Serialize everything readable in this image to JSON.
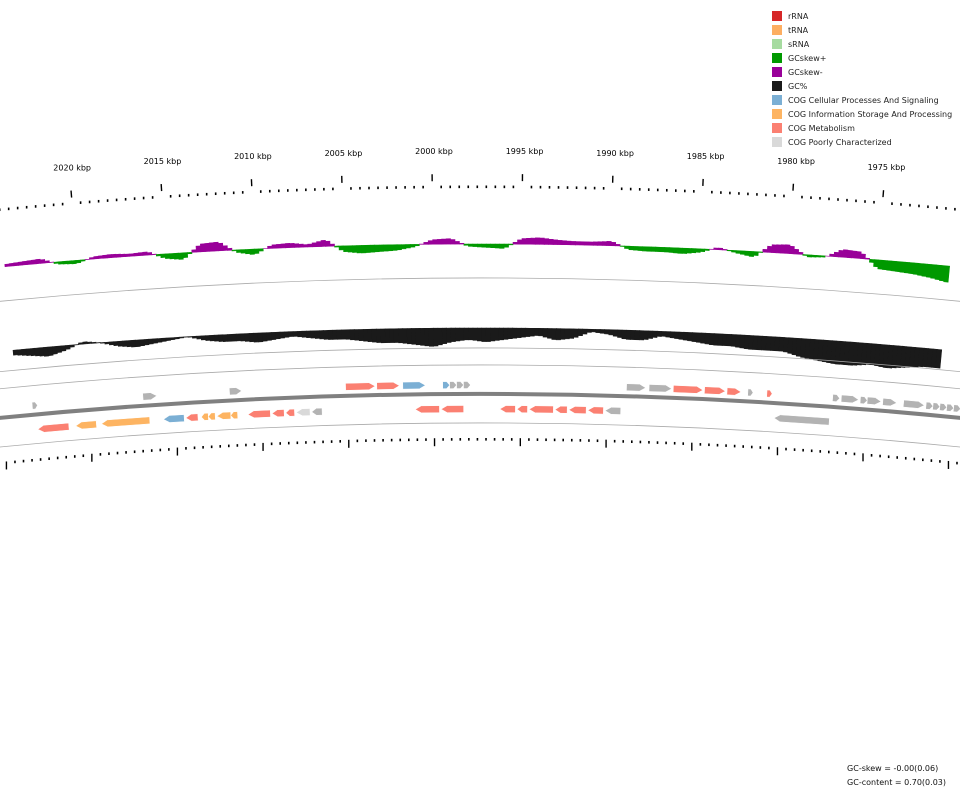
{
  "legend": [
    {
      "label": "rRNA",
      "color": "#d62728"
    },
    {
      "label": "tRNA",
      "color": "#fdae61"
    },
    {
      "label": "sRNA",
      "color": "#a6dba0"
    },
    {
      "label": "GCskew+",
      "color": "#009900"
    },
    {
      "label": "GCskew-",
      "color": "#990099"
    },
    {
      "label": "GC%",
      "color": "#1a1a1a"
    },
    {
      "label": "COG Cellular Processes And Signaling",
      "color": "#7bafd4"
    },
    {
      "label": "COG Information Storage And Processing",
      "color": "#fdb462"
    },
    {
      "label": "COG Metabolism",
      "color": "#fb8072"
    },
    {
      "label": "COG Poorly Characterized",
      "color": "#d9d9d9"
    }
  ],
  "stats": {
    "gc_skew": "GC-skew = -0.00(0.06)",
    "gc_content": "GC-content = 0.70(0.03)"
  },
  "axis": {
    "unit": "kbp",
    "labels": [
      "2020 kbp",
      "2015 kbp",
      "2010 kbp",
      "2005 kbp",
      "2000 kbp",
      "1995 kbp",
      "1990 kbp",
      "1985 kbp",
      "1980 kbp",
      "1975 kbp"
    ],
    "range_kbp": [
      2023,
      1972
    ]
  },
  "colors": {
    "skew_pos": "#009900",
    "skew_neg": "#990099",
    "gc": "#1a1a1a",
    "backbone": "#808080",
    "ring_line": "#aaaaaa",
    "gene_other": "#b3b3b3",
    "cog_cellular": "#7bafd4",
    "cog_info": "#fdb462",
    "cog_metabolism": "#fb8072",
    "cog_poor": "#d9d9d9"
  },
  "genes": [
    {
      "strand": "+",
      "start": 2023.2,
      "end": 2022.9,
      "cls": "gene_other"
    },
    {
      "strand": "+",
      "start": 2016.8,
      "end": 2016.0,
      "cls": "gene_other"
    },
    {
      "strand": "+",
      "start": 2011.8,
      "end": 2011.1,
      "cls": "gene_other"
    },
    {
      "strand": "+",
      "start": 2005.1,
      "end": 2003.4,
      "cls": "cog_metabolism"
    },
    {
      "strand": "+",
      "start": 2003.3,
      "end": 2002.0,
      "cls": "cog_metabolism"
    },
    {
      "strand": "+",
      "start": 2001.8,
      "end": 2000.5,
      "cls": "cog_cellular"
    },
    {
      "strand": "+",
      "start": 1999.5,
      "end": 1999.1,
      "cls": "cog_cellular"
    },
    {
      "strand": "+",
      "start": 1999.1,
      "end": 1998.7,
      "cls": "gene_other"
    },
    {
      "strand": "+",
      "start": 1998.7,
      "end": 1998.3,
      "cls": "gene_other"
    },
    {
      "strand": "+",
      "start": 1998.3,
      "end": 1997.9,
      "cls": "gene_other"
    },
    {
      "strand": "+",
      "start": 1988.9,
      "end": 1987.8,
      "cls": "gene_other"
    },
    {
      "strand": "+",
      "start": 1987.6,
      "end": 1986.3,
      "cls": "gene_other"
    },
    {
      "strand": "+",
      "start": 1986.2,
      "end": 1984.5,
      "cls": "cog_metabolism"
    },
    {
      "strand": "+",
      "start": 1984.4,
      "end": 1983.2,
      "cls": "cog_metabolism"
    },
    {
      "strand": "+",
      "start": 1983.1,
      "end": 1982.3,
      "cls": "cog_metabolism"
    },
    {
      "strand": "+",
      "start": 1981.9,
      "end": 1981.6,
      "cls": "gene_other"
    },
    {
      "strand": "+",
      "start": 1980.8,
      "end": 1980.5,
      "cls": "cog_metabolism"
    },
    {
      "strand": "+",
      "start": 1977.0,
      "end": 1976.6,
      "cls": "gene_other"
    },
    {
      "strand": "+",
      "start": 1976.5,
      "end": 1975.5,
      "cls": "gene_other"
    },
    {
      "strand": "+",
      "start": 1975.4,
      "end": 1975.0,
      "cls": "gene_other"
    },
    {
      "strand": "+",
      "start": 1975.0,
      "end": 1974.2,
      "cls": "gene_other"
    },
    {
      "strand": "+",
      "start": 1974.1,
      "end": 1973.3,
      "cls": "gene_other"
    },
    {
      "strand": "+",
      "start": 1972.9,
      "end": 1971.7,
      "cls": "gene_other"
    },
    {
      "strand": "+",
      "start": 1971.6,
      "end": 1971.2,
      "cls": "gene_other"
    },
    {
      "strand": "+",
      "start": 1971.2,
      "end": 1970.8,
      "cls": "gene_other"
    },
    {
      "strand": "+",
      "start": 1970.8,
      "end": 1970.4,
      "cls": "gene_other"
    },
    {
      "strand": "+",
      "start": 1970.4,
      "end": 1970.0,
      "cls": "gene_other"
    },
    {
      "strand": "+",
      "start": 1970.0,
      "end": 1969.6,
      "cls": "gene_other"
    },
    {
      "strand": "-",
      "start": 2023.0,
      "end": 2021.2,
      "cls": "cog_metabolism"
    },
    {
      "strand": "-",
      "start": 2020.8,
      "end": 2019.6,
      "cls": "cog_info"
    },
    {
      "strand": "-",
      "start": 2019.3,
      "end": 2016.5,
      "cls": "cog_info"
    },
    {
      "strand": "-",
      "start": 2015.7,
      "end": 2014.5,
      "cls": "cog_cellular"
    },
    {
      "strand": "-",
      "start": 2014.4,
      "end": 2013.7,
      "cls": "cog_metabolism"
    },
    {
      "strand": "-",
      "start": 2013.5,
      "end": 2013.1,
      "cls": "cog_info"
    },
    {
      "strand": "-",
      "start": 2013.1,
      "end": 2012.7,
      "cls": "cog_info"
    },
    {
      "strand": "-",
      "start": 2012.6,
      "end": 2011.8,
      "cls": "cog_info"
    },
    {
      "strand": "-",
      "start": 2011.8,
      "end": 2011.4,
      "cls": "cog_info"
    },
    {
      "strand": "-",
      "start": 2010.8,
      "end": 2009.5,
      "cls": "cog_metabolism"
    },
    {
      "strand": "-",
      "start": 2009.4,
      "end": 2008.7,
      "cls": "cog_metabolism"
    },
    {
      "strand": "-",
      "start": 2008.6,
      "end": 2008.1,
      "cls": "cog_metabolism"
    },
    {
      "strand": "-",
      "start": 2008.0,
      "end": 2007.2,
      "cls": "cog_poor"
    },
    {
      "strand": "-",
      "start": 2007.1,
      "end": 2006.5,
      "cls": "gene_other"
    },
    {
      "strand": "-",
      "start": 2001.1,
      "end": 1999.7,
      "cls": "cog_metabolism"
    },
    {
      "strand": "-",
      "start": 1999.6,
      "end": 1998.3,
      "cls": "cog_metabolism"
    },
    {
      "strand": "-",
      "start": 1996.2,
      "end": 1995.3,
      "cls": "cog_metabolism"
    },
    {
      "strand": "-",
      "start": 1995.2,
      "end": 1994.6,
      "cls": "cog_metabolism"
    },
    {
      "strand": "-",
      "start": 1994.5,
      "end": 1993.1,
      "cls": "cog_metabolism"
    },
    {
      "strand": "-",
      "start": 1993.0,
      "end": 1992.3,
      "cls": "cog_metabolism"
    },
    {
      "strand": "-",
      "start": 1992.2,
      "end": 1991.2,
      "cls": "cog_metabolism"
    },
    {
      "strand": "-",
      "start": 1991.1,
      "end": 1990.2,
      "cls": "cog_metabolism"
    },
    {
      "strand": "-",
      "start": 1990.1,
      "end": 1989.2,
      "cls": "gene_other"
    },
    {
      "strand": "-",
      "start": 1980.3,
      "end": 1977.1,
      "cls": "gene_other"
    }
  ],
  "gc_profile": {
    "kbp": [
      2024,
      2023,
      2022,
      2021,
      2020,
      2019,
      2018,
      2017,
      2016,
      2015,
      2014,
      2013,
      2012,
      2011,
      2010,
      2009,
      2008,
      2007,
      2006,
      2005,
      2004,
      2003,
      2002,
      2001,
      2000,
      1999,
      1998,
      1997,
      1996,
      1995,
      1994,
      1993,
      1992,
      1991,
      1990,
      1989,
      1988,
      1987,
      1986,
      1985,
      1984,
      1983,
      1982,
      1981,
      1980,
      1979,
      1978,
      1977,
      1976,
      1975,
      1974,
      1973,
      1972,
      1971
    ],
    "skew": [
      0.02,
      0.03,
      0.04,
      -0.02,
      -0.03,
      0.02,
      0.03,
      0.02,
      0.03,
      -0.04,
      -0.06,
      0.07,
      0.08,
      -0.02,
      -0.05,
      0.03,
      0.04,
      0.02,
      0.06,
      -0.05,
      -0.07,
      -0.06,
      -0.05,
      -0.02,
      0.04,
      0.05,
      -0.02,
      -0.03,
      -0.04,
      0.05,
      0.06,
      0.04,
      0.03,
      0.03,
      0.04,
      -0.03,
      -0.04,
      -0.04,
      -0.05,
      -0.03,
      0.02,
      -0.02,
      -0.05,
      0.07,
      0.08,
      -0.02,
      -0.01,
      0.07,
      0.06,
      -0.08,
      -0.09,
      -0.1,
      -0.12,
      -0.15
    ],
    "gc": [
      0.68,
      0.67,
      0.66,
      0.68,
      0.71,
      0.7,
      0.68,
      0.67,
      0.68,
      0.69,
      0.7,
      0.68,
      0.67,
      0.67,
      0.66,
      0.67,
      0.68,
      0.67,
      0.66,
      0.66,
      0.65,
      0.64,
      0.64,
      0.63,
      0.62,
      0.64,
      0.65,
      0.64,
      0.65,
      0.66,
      0.67,
      0.65,
      0.66,
      0.69,
      0.68,
      0.66,
      0.66,
      0.68,
      0.67,
      0.66,
      0.65,
      0.65,
      0.64,
      0.64,
      0.64,
      0.62,
      0.61,
      0.6,
      0.6,
      0.61,
      0.6,
      0.61,
      0.62,
      0.62
    ]
  }
}
